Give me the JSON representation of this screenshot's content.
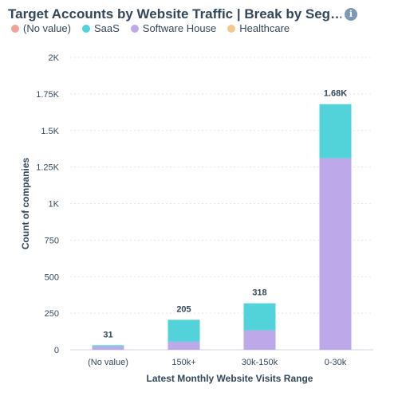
{
  "header": {
    "title": "Target Accounts by Website Traffic | Break by Seg…",
    "info_icon": "info-icon"
  },
  "colors": {
    "no_value": "#f2a195",
    "saas": "#51d3d9",
    "software_house": "#bda9ea",
    "healthcare": "#f5c78e",
    "grid": "#dfe3eb",
    "text": "#33475b"
  },
  "chart_data": {
    "type": "bar",
    "stacked": true,
    "title": "Target Accounts by Website Traffic | Break by Seg…",
    "xlabel": "Latest Monthly Website Visits Range",
    "ylabel": "Count of companies",
    "categories": [
      "(No value)",
      "150k+",
      "30k-150k",
      "0-30k"
    ],
    "series": [
      {
        "name": "(No value)",
        "color": "#f2a195",
        "values": [
          0,
          0,
          0,
          0
        ]
      },
      {
        "name": "SaaS",
        "color": "#51d3d9",
        "values": [
          8,
          150,
          185,
          370
        ]
      },
      {
        "name": "Software House",
        "color": "#bda9ea",
        "values": [
          23,
          55,
          133,
          1310
        ]
      },
      {
        "name": "Healthcare",
        "color": "#f5c78e",
        "values": [
          0,
          0,
          0,
          0
        ]
      }
    ],
    "totals": [
      "31",
      "205",
      "318",
      "1.68K"
    ],
    "ylim": [
      0,
      2000
    ],
    "yticks": [
      0,
      250,
      500,
      750,
      1000,
      1250,
      1500,
      1750,
      2000
    ],
    "ytick_labels": [
      "0",
      "250",
      "500",
      "750",
      "1K",
      "1.25K",
      "1.5K",
      "1.75K",
      "2K"
    ],
    "grid": true,
    "legend_position": "top-left"
  }
}
